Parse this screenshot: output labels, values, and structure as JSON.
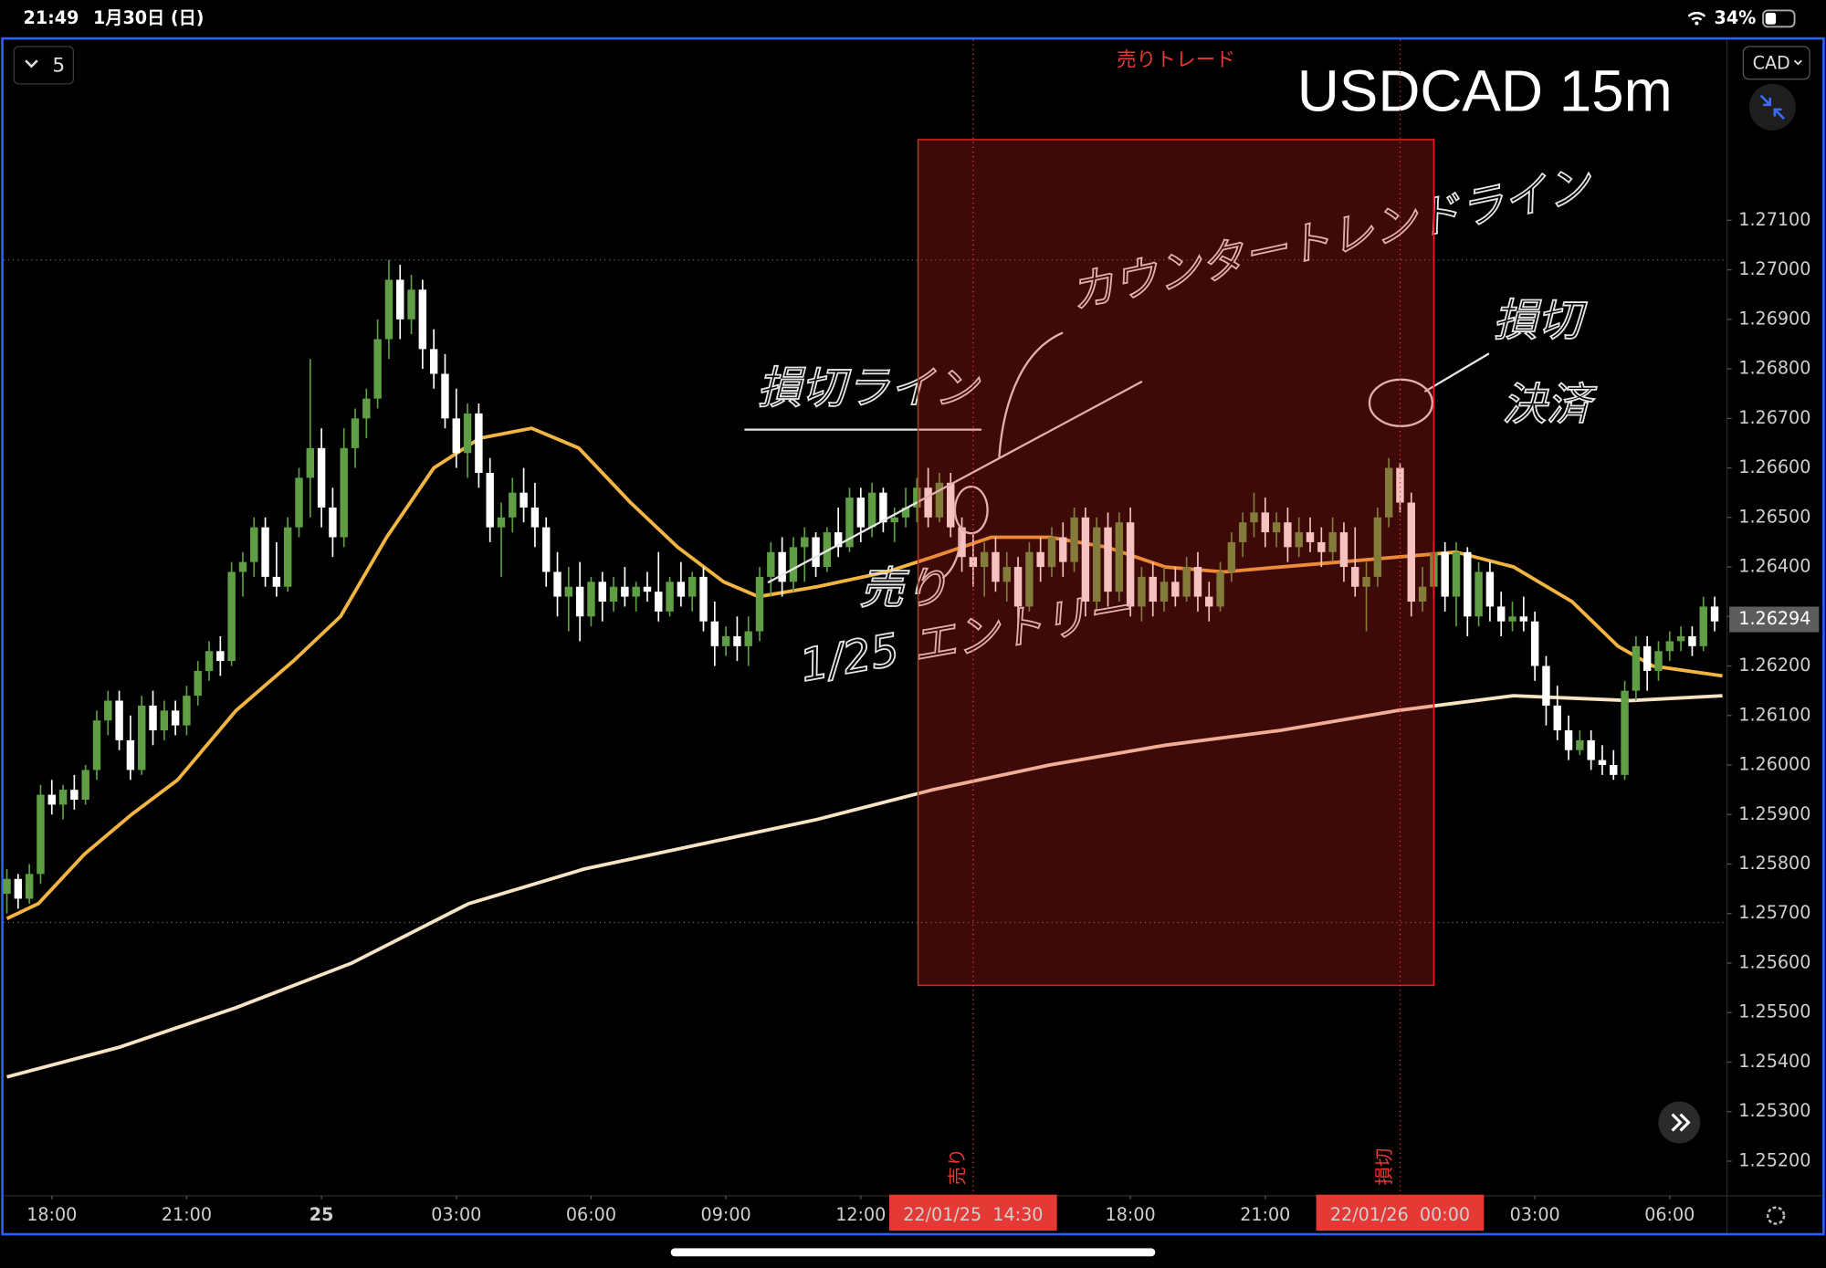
{
  "status_bar": {
    "time": "21:49",
    "date": "1月30日 (日)",
    "battery": "34%"
  },
  "toolbar": {
    "interval_button": "5",
    "currency_button": "CAD"
  },
  "chart_data": {
    "type": "candlestick",
    "title": "USDCAD 15m",
    "up_color": "#5f9e44",
    "down_color": "#ffffff",
    "ylim": [
      1.2513,
      1.27465
    ],
    "xlim": [
      -0.3,
      153.1
    ],
    "yticks": [
      {
        "value": 1.252,
        "label": "1.25200"
      },
      {
        "value": 1.253,
        "label": "1.25300"
      },
      {
        "value": 1.254,
        "label": "1.25400"
      },
      {
        "value": 1.255,
        "label": "1.25500"
      },
      {
        "value": 1.256,
        "label": "1.25600"
      },
      {
        "value": 1.257,
        "label": "1.25700"
      },
      {
        "value": 1.258,
        "label": "1.25800"
      },
      {
        "value": 1.259,
        "label": "1.25900"
      },
      {
        "value": 1.26,
        "label": "1.26000"
      },
      {
        "value": 1.261,
        "label": "1.26100"
      },
      {
        "value": 1.262,
        "label": "1.26200"
      },
      {
        "value": 1.263,
        "label": "1.26300"
      },
      {
        "value": 1.264,
        "label": "1.26400"
      },
      {
        "value": 1.265,
        "label": "1.26500"
      },
      {
        "value": 1.266,
        "label": "1.26600"
      },
      {
        "value": 1.267,
        "label": "1.26700"
      },
      {
        "value": 1.268,
        "label": "1.26800"
      },
      {
        "value": 1.269,
        "label": "1.26900"
      },
      {
        "value": 1.27,
        "label": "1.27000"
      },
      {
        "value": 1.271,
        "label": "1.27100"
      }
    ],
    "xticks": [
      {
        "value": 4,
        "label": "18:00"
      },
      {
        "value": 16,
        "label": "21:00"
      },
      {
        "value": 28,
        "label": "25",
        "bold": true
      },
      {
        "value": 40,
        "label": "03:00"
      },
      {
        "value": 52,
        "label": "06:00"
      },
      {
        "value": 64,
        "label": "09:00"
      },
      {
        "value": 76,
        "label": "12:00"
      },
      {
        "value": 86,
        "label": "22/01/25  14:30",
        "highlight": true
      },
      {
        "value": 100,
        "label": "18:00"
      },
      {
        "value": 112,
        "label": "21:00"
      },
      {
        "value": 124,
        "label": "22/01/26  00:00",
        "highlight": true
      },
      {
        "value": 136,
        "label": "03:00"
      },
      {
        "value": 148,
        "label": "06:00"
      }
    ],
    "last_price": {
      "value": 1.26294,
      "label": "1.26294"
    },
    "hlines": [
      1.2702,
      1.25682
    ],
    "trade_box": {
      "label": "売りトレード",
      "x": [
        81.1,
        127
      ],
      "y": [
        1.27263,
        1.25555
      ],
      "color": "#e02020"
    },
    "markers": [
      {
        "x": 86,
        "label": "売り"
      },
      {
        "x": 124,
        "label": "損切"
      }
    ],
    "ema_fast": {
      "color": "#f2b541",
      "x": [
        0,
        2.8,
        6.9,
        11.1,
        15.2,
        20.4,
        25.5,
        29.7,
        33.8,
        38,
        42.1,
        46.7,
        50.9,
        55.5,
        59.7,
        63.8,
        66.9,
        72.1,
        78.3,
        82.4,
        87.6,
        92.8,
        97.9,
        103.1,
        108.3,
        113.4,
        118.6,
        123.8,
        129,
        134.1,
        139.3,
        143.4,
        146.5,
        152.7
      ],
      "values": [
        1.2569,
        1.2572,
        1.2582,
        1.259,
        1.2597,
        1.2611,
        1.2621,
        1.263,
        1.2646,
        1.266,
        1.2666,
        1.2668,
        1.2664,
        1.2653,
        1.2644,
        1.2637,
        1.2634,
        1.2636,
        1.2639,
        1.2642,
        1.2646,
        1.2646,
        1.2644,
        1.264,
        1.2639,
        1.264,
        1.2641,
        1.2642,
        1.2643,
        1.264,
        1.2633,
        1.2624,
        1.262,
        1.2618
      ]
    },
    "ema_slow": {
      "color": "#f8e4c4",
      "x": [
        0,
        10,
        20.4,
        30.7,
        41.1,
        51.4,
        61.7,
        72.1,
        82.4,
        92.8,
        103.1,
        113.4,
        123.8,
        134.1,
        144.5,
        152.7
      ],
      "values": [
        1.2537,
        1.2543,
        1.2551,
        1.256,
        1.2572,
        1.2579,
        1.2584,
        1.2589,
        1.2595,
        1.26,
        1.2604,
        1.2607,
        1.2611,
        1.2614,
        1.2613,
        1.2614
      ]
    },
    "annotations": {
      "stop_line": "損切ライン",
      "counter_trend": "カウンタートレンドライン",
      "sell": "売り",
      "entry": "1/25 エントリー",
      "stop_exit": [
        "損切",
        "決済"
      ]
    },
    "candles": [
      [
        1.2574,
        1.2579,
        1.257,
        1.2577
      ],
      [
        1.2577,
        1.2578,
        1.2571,
        1.2573
      ],
      [
        1.2573,
        1.258,
        1.2572,
        1.2578
      ],
      [
        1.2578,
        1.2596,
        1.2576,
        1.2594
      ],
      [
        1.2594,
        1.2597,
        1.259,
        1.2592
      ],
      [
        1.2592,
        1.2596,
        1.2589,
        1.2595
      ],
      [
        1.2595,
        1.2598,
        1.2591,
        1.2593
      ],
      [
        1.2593,
        1.26,
        1.2592,
        1.2599
      ],
      [
        1.2599,
        1.2611,
        1.2597,
        1.2609
      ],
      [
        1.2609,
        1.2615,
        1.2606,
        1.2613
      ],
      [
        1.2613,
        1.2615,
        1.2603,
        1.2605
      ],
      [
        1.2605,
        1.261,
        1.2597,
        1.2599
      ],
      [
        1.2599,
        1.2614,
        1.2598,
        1.2612
      ],
      [
        1.2612,
        1.2615,
        1.2604,
        1.2607
      ],
      [
        1.2607,
        1.2613,
        1.2605,
        1.2611
      ],
      [
        1.2611,
        1.2613,
        1.2606,
        1.2608
      ],
      [
        1.2608,
        1.2616,
        1.2606,
        1.2614
      ],
      [
        1.2614,
        1.2621,
        1.2612,
        1.2619
      ],
      [
        1.2619,
        1.2625,
        1.2617,
        1.2623
      ],
      [
        1.2623,
        1.2626,
        1.2618,
        1.2621
      ],
      [
        1.2621,
        1.2641,
        1.262,
        1.2639
      ],
      [
        1.2639,
        1.2643,
        1.2634,
        1.2641
      ],
      [
        1.2641,
        1.265,
        1.2638,
        1.2648
      ],
      [
        1.2648,
        1.265,
        1.2636,
        1.2638
      ],
      [
        1.2638,
        1.2645,
        1.2634,
        1.2636
      ],
      [
        1.2636,
        1.265,
        1.2635,
        1.2648
      ],
      [
        1.2648,
        1.266,
        1.2646,
        1.2658
      ],
      [
        1.2658,
        1.2682,
        1.265,
        1.2664
      ],
      [
        1.2664,
        1.2668,
        1.2648,
        1.2652
      ],
      [
        1.2652,
        1.2656,
        1.2642,
        1.2646
      ],
      [
        1.2646,
        1.2668,
        1.2644,
        1.2664
      ],
      [
        1.2664,
        1.2672,
        1.266,
        1.267
      ],
      [
        1.267,
        1.2676,
        1.2666,
        1.2674
      ],
      [
        1.2674,
        1.269,
        1.2672,
        1.2686
      ],
      [
        1.2686,
        1.2702,
        1.2682,
        1.2698
      ],
      [
        1.2698,
        1.2701,
        1.2686,
        1.269
      ],
      [
        1.269,
        1.2699,
        1.2687,
        1.2696
      ],
      [
        1.2696,
        1.2698,
        1.268,
        1.2684
      ],
      [
        1.2684,
        1.2688,
        1.2676,
        1.2679
      ],
      [
        1.2679,
        1.2683,
        1.2668,
        1.267
      ],
      [
        1.267,
        1.2676,
        1.266,
        1.2663
      ],
      [
        1.2663,
        1.2673,
        1.2658,
        1.2671
      ],
      [
        1.2671,
        1.2673,
        1.2656,
        1.2659
      ],
      [
        1.2659,
        1.2662,
        1.2645,
        1.2648
      ],
      [
        1.2648,
        1.2653,
        1.2638,
        1.265
      ],
      [
        1.265,
        1.2658,
        1.2647,
        1.2655
      ],
      [
        1.2655,
        1.266,
        1.2649,
        1.2652
      ],
      [
        1.2652,
        1.2657,
        1.2644,
        1.2648
      ],
      [
        1.2648,
        1.265,
        1.2636,
        1.2639
      ],
      [
        1.2639,
        1.2643,
        1.263,
        1.2634
      ],
      [
        1.2634,
        1.264,
        1.2627,
        1.2636
      ],
      [
        1.2636,
        1.2641,
        1.2625,
        1.263
      ],
      [
        1.263,
        1.2638,
        1.2628,
        1.2637
      ],
      [
        1.2637,
        1.2639,
        1.2629,
        1.2633
      ],
      [
        1.2633,
        1.2638,
        1.2631,
        1.2636
      ],
      [
        1.2636,
        1.264,
        1.2632,
        1.2634
      ],
      [
        1.2634,
        1.2637,
        1.2631,
        1.2636
      ],
      [
        1.2636,
        1.2639,
        1.2633,
        1.2635
      ],
      [
        1.2635,
        1.2643,
        1.2629,
        1.2631
      ],
      [
        1.2631,
        1.2638,
        1.263,
        1.2637
      ],
      [
        1.2637,
        1.2641,
        1.2632,
        1.2634
      ],
      [
        1.2634,
        1.2639,
        1.2631,
        1.2638
      ],
      [
        1.2638,
        1.264,
        1.2627,
        1.2629
      ],
      [
        1.2629,
        1.2633,
        1.262,
        1.2624
      ],
      [
        1.2624,
        1.2628,
        1.2622,
        1.2626
      ],
      [
        1.2626,
        1.263,
        1.2621,
        1.2624
      ],
      [
        1.2624,
        1.263,
        1.262,
        1.2627
      ],
      [
        1.2627,
        1.264,
        1.2625,
        1.2638
      ],
      [
        1.2638,
        1.2645,
        1.2634,
        1.2643
      ],
      [
        1.2643,
        1.2646,
        1.2634,
        1.2637
      ],
      [
        1.2637,
        1.2646,
        1.2635,
        1.2644
      ],
      [
        1.2644,
        1.2648,
        1.2637,
        1.2646
      ],
      [
        1.2646,
        1.2647,
        1.2638,
        1.264
      ],
      [
        1.264,
        1.2648,
        1.2639,
        1.2647
      ],
      [
        1.2647,
        1.2652,
        1.2642,
        1.2644
      ],
      [
        1.2644,
        1.2656,
        1.2643,
        1.2654
      ],
      [
        1.2654,
        1.2656,
        1.2645,
        1.2648
      ],
      [
        1.2648,
        1.2657,
        1.2646,
        1.2655
      ],
      [
        1.2655,
        1.2656,
        1.2647,
        1.2649
      ],
      [
        1.2649,
        1.2652,
        1.2645,
        1.265
      ],
      [
        1.265,
        1.2656,
        1.2648,
        1.2652
      ],
      [
        1.2652,
        1.2658,
        1.2649,
        1.2656
      ],
      [
        1.2656,
        1.266,
        1.2648,
        1.265
      ],
      [
        1.265,
        1.2659,
        1.2649,
        1.2657
      ],
      [
        1.2657,
        1.2659,
        1.2646,
        1.2648
      ],
      [
        1.2648,
        1.265,
        1.2639,
        1.2642
      ],
      [
        1.2642,
        1.2647,
        1.2636,
        1.264
      ],
      [
        1.264,
        1.2645,
        1.2634,
        1.2643
      ],
      [
        1.2643,
        1.2646,
        1.2635,
        1.2637
      ],
      [
        1.2637,
        1.2643,
        1.2633,
        1.264
      ],
      [
        1.264,
        1.2642,
        1.2628,
        1.2632
      ],
      [
        1.2632,
        1.2645,
        1.2631,
        1.2643
      ],
      [
        1.2643,
        1.2646,
        1.2637,
        1.264
      ],
      [
        1.264,
        1.2648,
        1.2638,
        1.2646
      ],
      [
        1.2646,
        1.2649,
        1.2638,
        1.2641
      ],
      [
        1.2641,
        1.2652,
        1.2639,
        1.265
      ],
      [
        1.265,
        1.2652,
        1.263,
        1.2633
      ],
      [
        1.2633,
        1.265,
        1.2631,
        1.2648
      ],
      [
        1.2648,
        1.2651,
        1.2632,
        1.2635
      ],
      [
        1.2635,
        1.2651,
        1.2633,
        1.2649
      ],
      [
        1.2649,
        1.2652,
        1.263,
        1.2632
      ],
      [
        1.2632,
        1.264,
        1.2629,
        1.2638
      ],
      [
        1.2638,
        1.2641,
        1.263,
        1.2633
      ],
      [
        1.2633,
        1.264,
        1.2631,
        1.2637
      ],
      [
        1.2637,
        1.264,
        1.2632,
        1.2634
      ],
      [
        1.2634,
        1.2642,
        1.2633,
        1.264
      ],
      [
        1.264,
        1.2643,
        1.2631,
        1.2634
      ],
      [
        1.2634,
        1.2637,
        1.2629,
        1.2632
      ],
      [
        1.2632,
        1.2641,
        1.2631,
        1.2639
      ],
      [
        1.2639,
        1.2647,
        1.2637,
        1.2645
      ],
      [
        1.2645,
        1.2651,
        1.2642,
        1.2649
      ],
      [
        1.2649,
        1.2655,
        1.2646,
        1.2651
      ],
      [
        1.2651,
        1.2654,
        1.2644,
        1.2647
      ],
      [
        1.2647,
        1.2651,
        1.2644,
        1.2649
      ],
      [
        1.2649,
        1.2652,
        1.2641,
        1.2644
      ],
      [
        1.2644,
        1.265,
        1.2642,
        1.2647
      ],
      [
        1.2647,
        1.265,
        1.2643,
        1.2645
      ],
      [
        1.2645,
        1.2648,
        1.264,
        1.2643
      ],
      [
        1.2643,
        1.265,
        1.2641,
        1.2647
      ],
      [
        1.2647,
        1.2649,
        1.2637,
        1.264
      ],
      [
        1.264,
        1.2648,
        1.2634,
        1.2636
      ],
      [
        1.2636,
        1.2641,
        1.2627,
        1.2638
      ],
      [
        1.2638,
        1.2652,
        1.2636,
        1.265
      ],
      [
        1.265,
        1.2662,
        1.2648,
        1.266
      ],
      [
        1.266,
        1.2661,
        1.2651,
        1.2653
      ],
      [
        1.2653,
        1.2655,
        1.263,
        1.2633
      ],
      [
        1.2633,
        1.264,
        1.2631,
        1.2636
      ],
      [
        1.2636,
        1.2645,
        1.2634,
        1.2643
      ],
      [
        1.2643,
        1.2645,
        1.2631,
        1.2634
      ],
      [
        1.2634,
        1.2645,
        1.2628,
        1.2643
      ],
      [
        1.2643,
        1.2644,
        1.2626,
        1.263
      ],
      [
        1.263,
        1.2641,
        1.2628,
        1.2639
      ],
      [
        1.2639,
        1.2641,
        1.2629,
        1.2632
      ],
      [
        1.2632,
        1.2635,
        1.2626,
        1.2629
      ],
      [
        1.2629,
        1.2633,
        1.2627,
        1.263
      ],
      [
        1.263,
        1.2634,
        1.2627,
        1.2629
      ],
      [
        1.2629,
        1.2631,
        1.2617,
        1.262
      ],
      [
        1.262,
        1.2622,
        1.2608,
        1.2612
      ],
      [
        1.2612,
        1.2616,
        1.2605,
        1.2607
      ],
      [
        1.2607,
        1.261,
        1.2601,
        1.2603
      ],
      [
        1.2603,
        1.2607,
        1.2602,
        1.2605
      ],
      [
        1.2605,
        1.2607,
        1.2599,
        1.2601
      ],
      [
        1.2601,
        1.2604,
        1.2598,
        1.26
      ],
      [
        1.26,
        1.2603,
        1.2597,
        1.2598
      ],
      [
        1.2598,
        1.2617,
        1.2597,
        1.2615
      ],
      [
        1.2615,
        1.2626,
        1.2613,
        1.2624
      ],
      [
        1.2624,
        1.2626,
        1.2615,
        1.2619
      ],
      [
        1.2619,
        1.2625,
        1.2617,
        1.2623
      ],
      [
        1.2623,
        1.2627,
        1.2621,
        1.2625
      ],
      [
        1.2625,
        1.2628,
        1.2623,
        1.2626
      ],
      [
        1.2626,
        1.2628,
        1.2622,
        1.2624
      ],
      [
        1.2624,
        1.2634,
        1.2623,
        1.2632
      ],
      [
        1.2632,
        1.2634,
        1.2627,
        1.2629
      ]
    ]
  }
}
